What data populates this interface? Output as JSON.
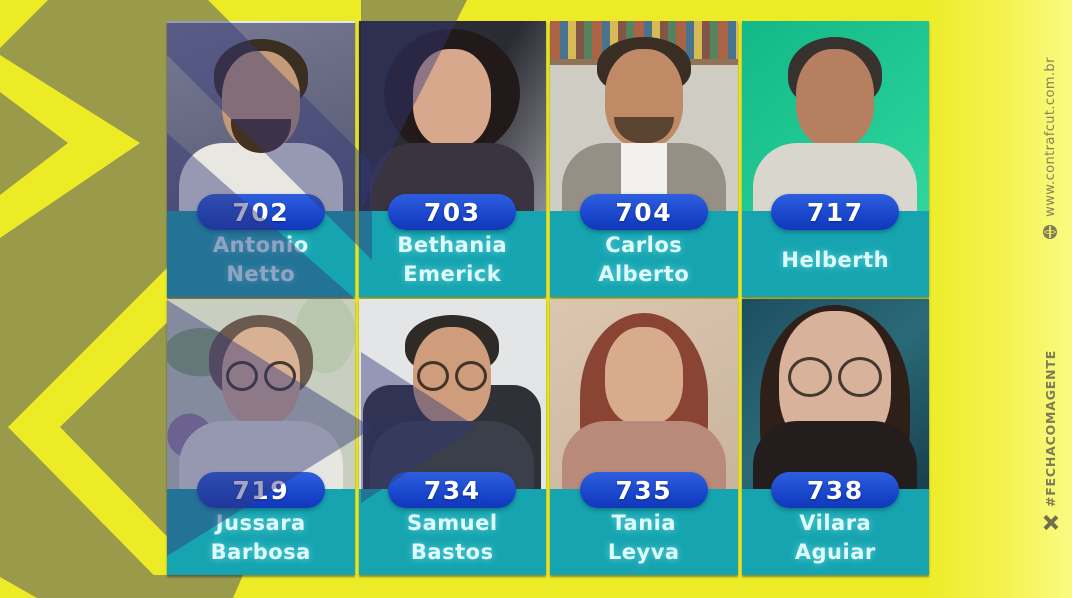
{
  "poster": {
    "website": {
      "label": "www.contrafcut.com.br"
    },
    "hashtag": {
      "label": "#FECHACOMAGENTE"
    },
    "candidates": [
      {
        "number": "702",
        "name_line1": "Antonio",
        "name_line2": "Netto"
      },
      {
        "number": "703",
        "name_line1": "Bethania",
        "name_line2": "Emerick"
      },
      {
        "number": "704",
        "name_line1": "Carlos",
        "name_line2": "Alberto"
      },
      {
        "number": "717",
        "name_line1": "Helberth",
        "name_line2": ""
      },
      {
        "number": "719",
        "name_line1": "Jussara",
        "name_line2": "Barbosa"
      },
      {
        "number": "734",
        "name_line1": "Samuel",
        "name_line2": "Bastos"
      },
      {
        "number": "735",
        "name_line1": "Tania",
        "name_line2": "Leyva"
      },
      {
        "number": "738",
        "name_line1": "Vilara",
        "name_line2": "Aguiar"
      }
    ],
    "colors": {
      "background_yellow": "#edeb26",
      "pattern_olive": "#9a9a4b",
      "badge_blue": "#1642c8",
      "nameplate_teal": "#16a4b0",
      "overlay_navy": "rgba(50,55,120,0.45)",
      "name_text": "#defbff",
      "side_text": "#84845c"
    },
    "icons": {
      "website_icon": "globe-icon",
      "hashtag_icon": "x-chevron-icon"
    }
  }
}
